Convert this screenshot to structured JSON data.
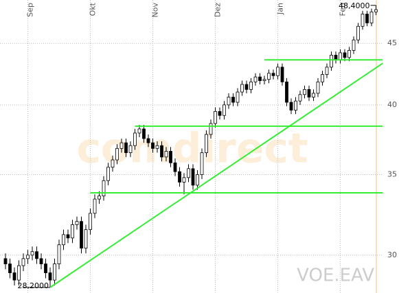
{
  "chart_data": {
    "type": "candlestick",
    "categories": [
      null,
      null,
      null,
      null,
      null,
      "Sep",
      null,
      null,
      null,
      null,
      null,
      null,
      null,
      null,
      null,
      null,
      null,
      null,
      null,
      "Okt",
      null,
      null,
      null,
      null,
      null,
      null,
      null,
      null,
      null,
      null,
      null,
      null,
      null,
      "Nov",
      null,
      null,
      null,
      null,
      null,
      null,
      null,
      null,
      null,
      null,
      null,
      null,
      null,
      "Dez",
      null,
      null,
      null,
      null,
      null,
      null,
      null,
      null,
      null,
      null,
      null,
      null,
      null,
      "Jan",
      null,
      null,
      null,
      null,
      null,
      null,
      null,
      null,
      null,
      null,
      null,
      null,
      null,
      "Feb",
      null,
      null,
      null,
      null,
      null,
      null,
      null,
      null
    ],
    "open": [
      29.8,
      29.5,
      29.0,
      28.6,
      29.4,
      29.8,
      30.0,
      30.2,
      29.8,
      29.5,
      29.0,
      28.6,
      29.5,
      30.6,
      31.2,
      31.0,
      31.8,
      32.0,
      30.4,
      31.5,
      32.5,
      33.4,
      33.6,
      34.6,
      35.5,
      36.0,
      36.8,
      37.2,
      36.5,
      37.0,
      37.9,
      38.2,
      37.5,
      37.2,
      36.8,
      37.0,
      36.2,
      36.6,
      35.8,
      35.2,
      34.5,
      34.8,
      35.4,
      34.3,
      35.0,
      36.5,
      37.8,
      38.6,
      39.5,
      39.2,
      40.0,
      40.6,
      40.2,
      41.0,
      41.6,
      41.2,
      41.8,
      42.2,
      41.9,
      42.0,
      42.5,
      42.3,
      43.0,
      41.8,
      40.2,
      39.6,
      40.3,
      40.8,
      41.2,
      40.6,
      40.9,
      41.8,
      42.4,
      43.0,
      44.0,
      43.6,
      44.2,
      43.8,
      44.4,
      45.3,
      46.5,
      47.6,
      46.8,
      47.8
    ],
    "high": [
      30.1,
      29.8,
      29.3,
      29.7,
      30.1,
      30.3,
      30.5,
      30.5,
      30.1,
      29.8,
      29.3,
      29.8,
      30.9,
      31.5,
      31.5,
      32.1,
      32.3,
      32.3,
      31.8,
      32.8,
      33.7,
      33.9,
      34.9,
      35.8,
      36.3,
      37.1,
      37.5,
      37.5,
      37.3,
      38.2,
      38.5,
      38.5,
      37.8,
      37.5,
      37.3,
      37.3,
      36.9,
      36.9,
      36.1,
      35.5,
      35.1,
      35.7,
      35.7,
      35.3,
      36.8,
      38.1,
      38.9,
      39.8,
      39.8,
      40.3,
      40.9,
      40.9,
      41.3,
      41.9,
      41.9,
      42.1,
      42.5,
      42.5,
      42.3,
      42.8,
      42.8,
      43.3,
      43.3,
      42.1,
      40.5,
      40.6,
      41.1,
      41.5,
      41.5,
      41.2,
      42.1,
      42.7,
      43.3,
      44.3,
      44.3,
      44.5,
      44.5,
      44.7,
      45.6,
      46.8,
      47.9,
      47.9,
      48.1,
      48.4
    ],
    "low": [
      29.2,
      28.7,
      28.3,
      28.3,
      29.1,
      29.5,
      29.7,
      29.5,
      29.2,
      28.7,
      28.2,
      28.3,
      29.2,
      30.3,
      30.7,
      30.7,
      31.5,
      30.1,
      30.1,
      31.2,
      32.2,
      33.1,
      33.3,
      34.3,
      35.2,
      35.7,
      36.5,
      36.2,
      36.2,
      36.7,
      37.6,
      37.2,
      36.9,
      36.5,
      36.5,
      35.9,
      35.9,
      35.5,
      34.9,
      34.2,
      33.7,
      34.5,
      34.0,
      34.0,
      34.7,
      36.2,
      37.5,
      38.3,
      38.9,
      38.9,
      39.7,
      39.9,
      39.9,
      40.7,
      40.9,
      40.9,
      41.5,
      41.6,
      41.6,
      41.7,
      42.0,
      42.0,
      41.5,
      39.9,
      39.3,
      39.3,
      40.0,
      40.5,
      40.3,
      40.3,
      40.6,
      41.5,
      42.1,
      42.7,
      43.3,
      43.3,
      43.5,
      43.5,
      44.1,
      45.0,
      46.2,
      46.5,
      46.5,
      47.5
    ],
    "close": [
      29.5,
      29.0,
      28.6,
      29.4,
      29.8,
      30.0,
      30.2,
      29.8,
      29.5,
      29.0,
      28.6,
      29.5,
      30.6,
      31.2,
      31.0,
      31.8,
      32.0,
      30.4,
      31.5,
      32.5,
      33.4,
      33.6,
      34.6,
      35.5,
      36.0,
      36.8,
      37.2,
      36.5,
      37.0,
      37.9,
      38.2,
      37.5,
      37.2,
      36.8,
      37.0,
      36.2,
      36.6,
      35.8,
      35.2,
      34.5,
      34.8,
      35.4,
      34.3,
      35.0,
      36.5,
      37.8,
      38.6,
      39.5,
      39.2,
      40.0,
      40.6,
      40.2,
      41.0,
      41.6,
      41.2,
      41.8,
      42.2,
      41.9,
      42.0,
      42.5,
      42.3,
      43.0,
      41.8,
      40.2,
      39.6,
      40.3,
      40.8,
      41.2,
      40.6,
      40.9,
      41.8,
      42.4,
      43.0,
      44.0,
      43.6,
      44.2,
      43.8,
      44.4,
      45.3,
      46.5,
      47.6,
      46.8,
      47.8,
      48.0
    ],
    "color": "#000000",
    "ylim": [
      27.9,
      48.9
    ],
    "yticks": [
      30,
      35,
      40,
      45
    ],
    "log_scale": true,
    "grid": true,
    "lines": [
      {
        "x": [
          19,
          88
        ],
        "values": [
          33.8,
          33.8
        ]
      },
      {
        "x": [
          29,
          88
        ],
        "values": [
          38.4,
          38.4
        ]
      },
      {
        "x": [
          58,
          88
        ],
        "values": [
          43.6,
          43.6
        ]
      },
      {
        "x": [
          10,
          88
        ],
        "values": [
          28.2,
          44.2
        ]
      }
    ],
    "line_color": "#33ee33",
    "high_label": "48,4000",
    "low_label": "28,2000",
    "symbol": "VOE.EAV",
    "watermark": "comdirect"
  }
}
